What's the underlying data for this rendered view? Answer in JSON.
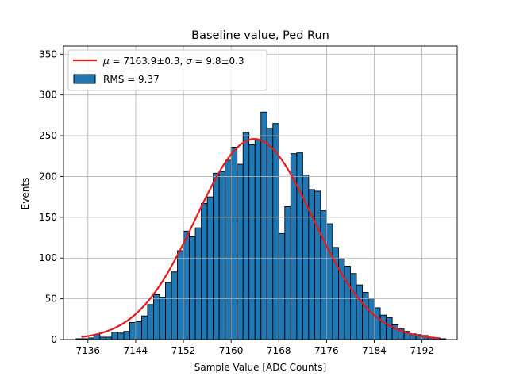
{
  "chart_data": {
    "type": "bar",
    "title": "Baseline value, Ped Run",
    "xlabel": "Sample Value [ADC Counts]",
    "ylabel": "Events",
    "xlim": [
      7131.9,
      7197.9
    ],
    "ylim": [
      0,
      360
    ],
    "grid": true,
    "legend_position": "top-left",
    "xticks": [
      7136,
      7144,
      7152,
      7160,
      7168,
      7176,
      7184,
      7192
    ],
    "yticks": [
      0,
      50,
      100,
      150,
      200,
      250,
      300,
      350
    ],
    "histogram": {
      "name": "RMS = 9.37",
      "color": "#1f77b4",
      "edgecolor": "#000000",
      "bin_width": 1,
      "bin_start": 7134,
      "counts": [
        1,
        1,
        2,
        6,
        3,
        3,
        9,
        8,
        10,
        21,
        22,
        29,
        43,
        55,
        52,
        70,
        83,
        109,
        133,
        126,
        137,
        167,
        175,
        204,
        206,
        220,
        236,
        215,
        254,
        239,
        245,
        279,
        259,
        265,
        130,
        163,
        228,
        229,
        202,
        184,
        182,
        158,
        142,
        113,
        99,
        90,
        81,
        67,
        58,
        50,
        39,
        30,
        27,
        18,
        13,
        10,
        7,
        6,
        5,
        3,
        2,
        1
      ]
    },
    "fit": {
      "name_html": "<tspan font-style=\"italic\">μ</tspan> = 7163.9±0.3, <tspan font-style=\"italic\">σ</tspan> = 9.8±0.3",
      "color": "#e41a1c",
      "mu": 7163.9,
      "sigma": 9.8,
      "amplitude": 246,
      "x_range": [
        7134.9,
        7194.9
      ]
    }
  },
  "legend": {
    "fit_label": "μ = 7163.9±0.3, σ = 9.8±0.3",
    "hist_label": "RMS = 9.37"
  }
}
